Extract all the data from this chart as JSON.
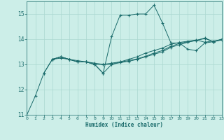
{
  "xlabel": "Humidex (Indice chaleur)",
  "xlim": [
    0,
    23
  ],
  "ylim": [
    11,
    15.5
  ],
  "yticks": [
    11,
    12,
    13,
    14,
    15
  ],
  "xticks": [
    0,
    1,
    2,
    3,
    4,
    5,
    6,
    7,
    8,
    9,
    10,
    11,
    12,
    13,
    14,
    15,
    16,
    17,
    18,
    19,
    20,
    21,
    22,
    23
  ],
  "bg_color": "#cceee8",
  "line_color": "#1a6b6b",
  "grid_color": "#aad8d0",
  "line1_x": [
    0,
    1,
    2,
    3,
    4,
    5,
    6,
    7,
    8,
    9,
    10,
    11,
    12,
    13,
    14,
    15,
    16,
    17,
    18,
    19,
    20,
    21,
    22,
    23
  ],
  "line1_y": [
    11.0,
    11.75,
    12.65,
    13.2,
    13.3,
    13.2,
    13.1,
    13.1,
    13.0,
    12.65,
    14.1,
    14.95,
    14.95,
    15.0,
    15.0,
    15.35,
    14.65,
    13.85,
    13.85,
    13.6,
    13.55,
    13.85,
    13.9,
    14.0
  ],
  "line2_x": [
    2,
    3,
    4,
    5,
    6,
    7,
    8,
    9,
    10,
    11,
    12,
    13,
    14,
    15,
    16,
    17,
    18,
    19,
    20,
    21,
    22,
    23
  ],
  "line2_y": [
    12.65,
    13.2,
    13.3,
    13.2,
    13.1,
    13.1,
    13.0,
    12.65,
    13.0,
    13.1,
    13.2,
    13.3,
    13.45,
    13.55,
    13.65,
    13.8,
    13.87,
    13.92,
    13.97,
    13.88,
    13.93,
    13.97
  ],
  "line3_x": [
    3,
    4,
    5,
    6,
    7,
    8,
    9,
    10,
    11,
    12,
    13,
    14,
    15,
    16,
    17,
    18,
    19,
    20,
    21,
    22,
    23
  ],
  "line3_y": [
    13.2,
    13.3,
    13.2,
    13.1,
    13.1,
    13.0,
    13.0,
    13.0,
    13.07,
    13.12,
    13.2,
    13.3,
    13.4,
    13.5,
    13.68,
    13.78,
    13.88,
    13.95,
    14.03,
    13.9,
    13.97
  ],
  "line4_x": [
    3,
    4,
    5,
    6,
    7,
    8,
    9,
    10,
    11,
    12,
    13,
    14,
    15,
    16,
    17,
    18,
    19,
    20,
    21,
    22,
    23
  ],
  "line4_y": [
    13.2,
    13.25,
    13.2,
    13.15,
    13.1,
    13.05,
    13.0,
    13.05,
    13.1,
    13.15,
    13.22,
    13.32,
    13.45,
    13.55,
    13.72,
    13.83,
    13.9,
    13.95,
    14.05,
    13.9,
    14.0
  ]
}
